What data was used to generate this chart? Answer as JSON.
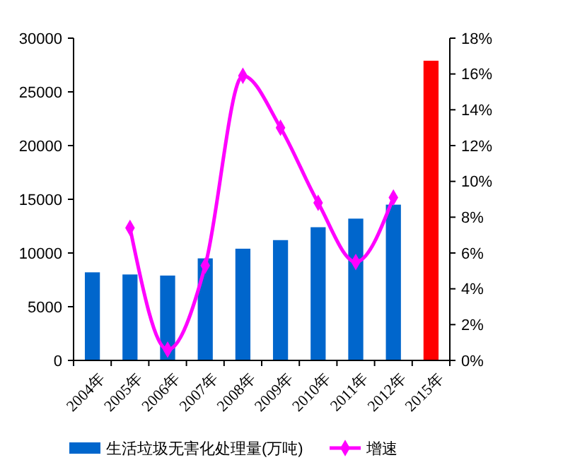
{
  "chart_data": {
    "type": "bar",
    "categories": [
      "2004年",
      "2005年",
      "2006年",
      "2007年",
      "2008年",
      "2009年",
      "2010年",
      "2011年",
      "2012年",
      "2015年"
    ],
    "series": [
      {
        "name": "生活垃圾无害化处理量(万吨)",
        "color": "#0066cc",
        "colors": [
          "#0066cc",
          "#0066cc",
          "#0066cc",
          "#0066cc",
          "#0066cc",
          "#0066cc",
          "#0066cc",
          "#0066cc",
          "#0066cc",
          "#ff0000"
        ],
        "values": [
          8200,
          8000,
          7900,
          9500,
          10400,
          11200,
          12400,
          13200,
          14500,
          27900
        ]
      },
      {
        "name": "增速",
        "type": "line",
        "axis": "y2",
        "color": "#ff00ff",
        "marker": "diamond",
        "values": [
          null,
          7.4,
          0.6,
          5.3,
          15.9,
          13.0,
          8.8,
          5.5,
          9.1,
          null
        ]
      }
    ],
    "ylim": [
      0,
      30000
    ],
    "yticks": [
      0,
      5000,
      10000,
      15000,
      20000,
      25000,
      30000
    ],
    "y2lim": [
      0,
      18
    ],
    "y2ticks": [
      {
        "value": 0,
        "label": "0%"
      },
      {
        "value": 2,
        "label": "2%"
      },
      {
        "value": 4,
        "label": "4%"
      },
      {
        "value": 6,
        "label": "6%"
      },
      {
        "value": 8,
        "label": "8%"
      },
      {
        "value": 10,
        "label": "10%"
      },
      {
        "value": 12,
        "label": "12%"
      },
      {
        "value": 14,
        "label": "14%"
      },
      {
        "value": 16,
        "label": "16%"
      },
      {
        "value": 18,
        "label": "18%"
      }
    ],
    "legend": "bottom"
  }
}
